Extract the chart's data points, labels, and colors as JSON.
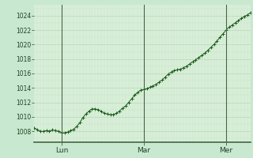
{
  "background_color": "#c8e8d0",
  "plot_bg_color": "#d8eed8",
  "grid_major_color": "#b8d8b8",
  "grid_minor_color": "#c8e0c8",
  "line_color": "#1a5c1a",
  "marker_color": "#1a5c1a",
  "ylabel_values": [
    1008,
    1010,
    1012,
    1014,
    1016,
    1018,
    1020,
    1022,
    1024
  ],
  "ylim": [
    1006.5,
    1025.5
  ],
  "x_day_labels": [
    "Lun",
    "Mar",
    "Mer"
  ],
  "lun_idx": 9,
  "mar_idx": 36,
  "mer_idx": 63,
  "pressure_data": [
    1008.5,
    1008.2,
    1008.0,
    1008.0,
    1008.1,
    1008.0,
    1008.2,
    1008.1,
    1008.0,
    1007.8,
    1007.8,
    1007.9,
    1008.1,
    1008.3,
    1008.7,
    1009.2,
    1009.9,
    1010.4,
    1010.8,
    1011.1,
    1011.1,
    1011.0,
    1010.8,
    1010.5,
    1010.4,
    1010.3,
    1010.3,
    1010.5,
    1010.8,
    1011.2,
    1011.5,
    1012.0,
    1012.5,
    1013.0,
    1013.4,
    1013.7,
    1013.8,
    1013.9,
    1014.1,
    1014.3,
    1014.5,
    1014.8,
    1015.1,
    1015.5,
    1015.9,
    1016.2,
    1016.4,
    1016.5,
    1016.6,
    1016.8,
    1017.0,
    1017.3,
    1017.6,
    1017.9,
    1018.2,
    1018.5,
    1018.8,
    1019.2,
    1019.6,
    1020.0,
    1020.5,
    1021.0,
    1021.5,
    1022.0,
    1022.4,
    1022.7,
    1023.0,
    1023.3,
    1023.6,
    1023.9,
    1024.1,
    1024.4
  ]
}
